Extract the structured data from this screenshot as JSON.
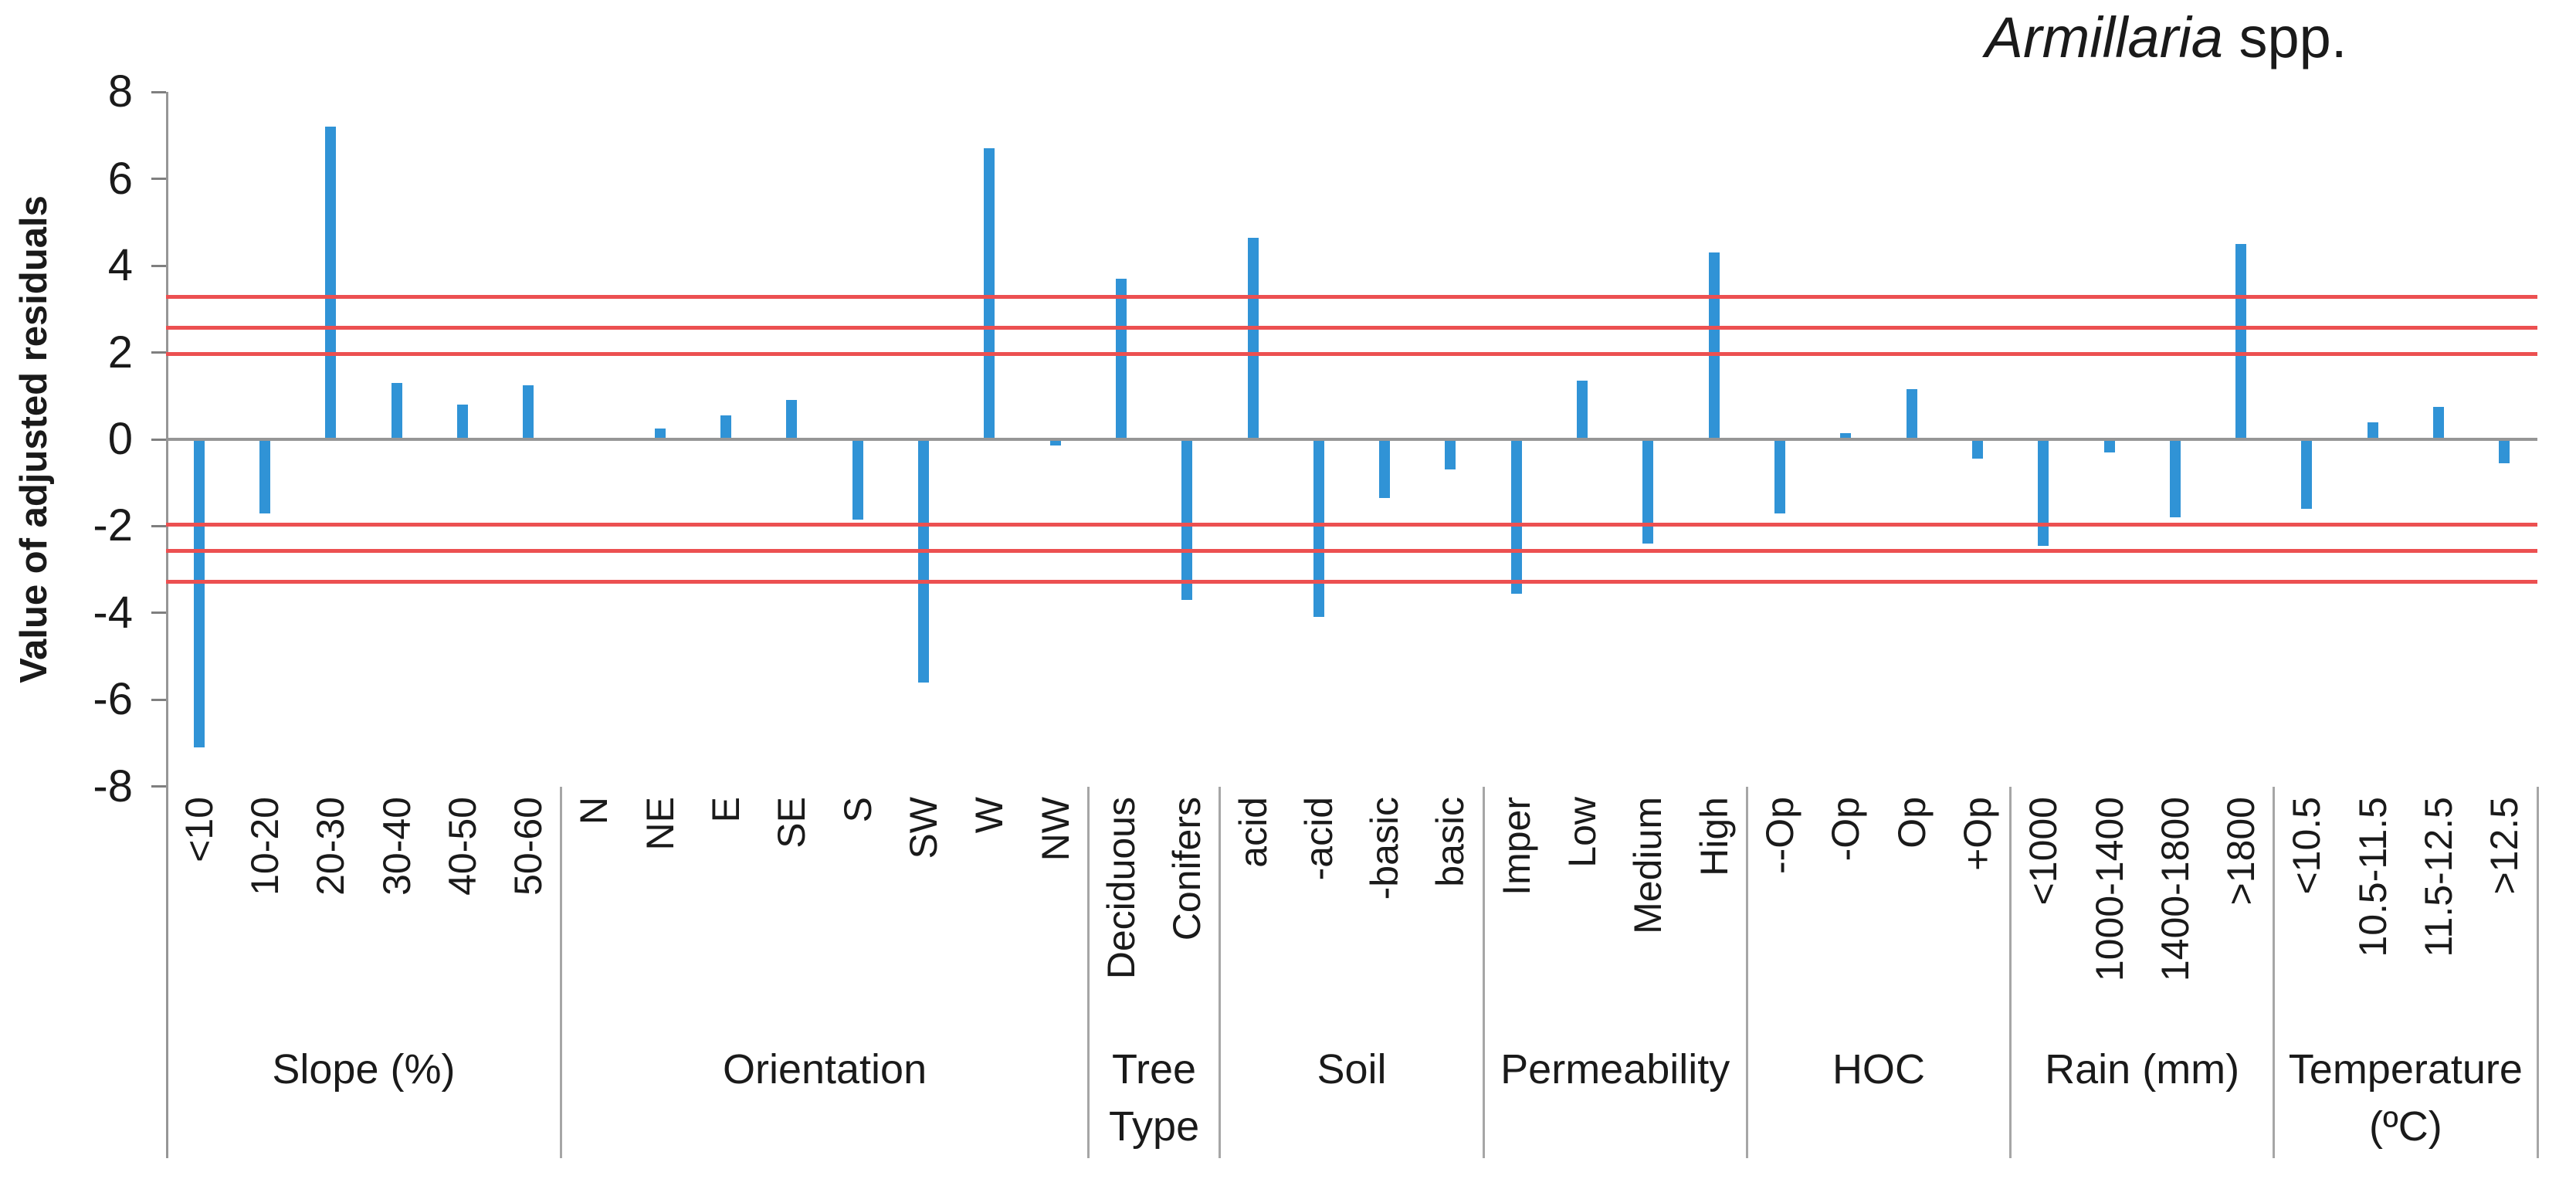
{
  "title": {
    "italic": "Armillaria",
    "suffix": " spp."
  },
  "y_axis": {
    "label": "Value of adjusted residuals",
    "ticks": [
      8,
      6,
      4,
      2,
      0,
      -2,
      -4,
      -6,
      -8
    ],
    "min": -8,
    "max": 8
  },
  "colors": {
    "bar": "#3093d6",
    "significance_line": "#ec5051",
    "axis": "#969696",
    "tick": "#7f7f7f",
    "divider": "#a6a6a6",
    "text": "#1a1a1a"
  },
  "chart_data": {
    "type": "bar",
    "title": "Armillaria spp.",
    "xlabel": "",
    "ylabel": "Value of adjusted residuals",
    "ylim": [
      -8,
      8
    ],
    "grid": false,
    "legend": false,
    "significance_lines": [
      3.29,
      2.58,
      1.96,
      -1.96,
      -2.58,
      -3.29
    ],
    "groups": [
      {
        "label": "Slope (%)",
        "categories": [
          "<10",
          "10-20",
          "20-30",
          "30-40",
          "40-50",
          "50-60"
        ],
        "values": [
          -7.1,
          -1.7,
          7.2,
          1.3,
          0.8,
          1.25
        ]
      },
      {
        "label": "Orientation",
        "categories": [
          "N",
          "NE",
          "E",
          "SE",
          "S",
          "SW",
          "W",
          "NW"
        ],
        "values": [
          0,
          0.25,
          0.55,
          0.9,
          -1.85,
          -5.6,
          6.7,
          -0.15
        ]
      },
      {
        "label": "Tree Type",
        "categories": [
          "Deciduous",
          "Conifers"
        ],
        "values": [
          3.7,
          -3.7
        ]
      },
      {
        "label": "Soil",
        "categories": [
          "acid",
          "-acid",
          "-basic",
          "basic"
        ],
        "values": [
          4.65,
          -4.1,
          -1.35,
          -0.7
        ]
      },
      {
        "label": "Permeability",
        "categories": [
          "Imper",
          "Low",
          "Medium",
          "High"
        ],
        "values": [
          -3.55,
          1.35,
          -2.4,
          4.3
        ]
      },
      {
        "label": "HOC",
        "categories": [
          "--Op",
          "-Op",
          "Op",
          "+Op"
        ],
        "values": [
          -1.7,
          0.15,
          1.15,
          -0.45
        ]
      },
      {
        "label": "Rain (mm)",
        "categories": [
          "<1000",
          "1000-1400",
          "1400-1800",
          ">1800"
        ],
        "values": [
          -2.45,
          -0.3,
          -1.8,
          4.5
        ]
      },
      {
        "label": "Temperature (ºC)",
        "categories": [
          "<10.5",
          "10.5-11.5",
          "11.5-12.5",
          ">12.5"
        ],
        "values": [
          -1.6,
          0.4,
          0.75,
          -0.55
        ]
      }
    ]
  }
}
